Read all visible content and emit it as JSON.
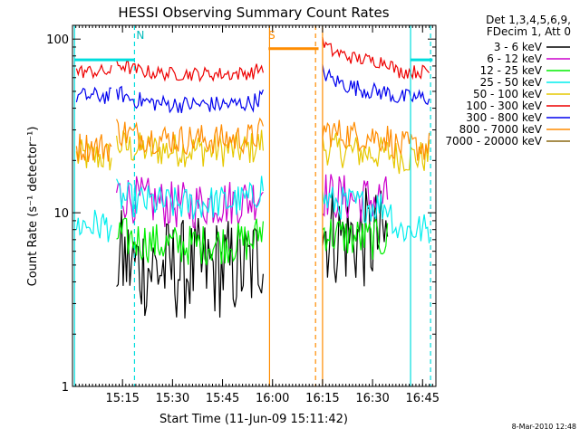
{
  "chart_data": {
    "type": "line",
    "title": "HESSI Observing Summary Count Rates",
    "xlabel": "Start Time (11-Jun-09 15:11:42)",
    "ylabel": "Count Rate (s⁻¹ detector⁻¹)",
    "yscale": "log",
    "ylim": [
      1,
      120
    ],
    "xlim_minutes": [
      15.0,
      16.8167
    ],
    "x_ticks": [
      {
        "value": 15.25,
        "label": "15:15"
      },
      {
        "value": 15.5,
        "label": "15:30"
      },
      {
        "value": 15.75,
        "label": "15:45"
      },
      {
        "value": 16.0,
        "label": "16:00"
      },
      {
        "value": 16.25,
        "label": "16:15"
      },
      {
        "value": 16.5,
        "label": "16:30"
      },
      {
        "value": 16.75,
        "label": "16:45"
      }
    ],
    "y_ticks": [
      {
        "value": 1,
        "label": "1"
      },
      {
        "value": 10,
        "label": "10"
      },
      {
        "value": 100,
        "label": "100"
      }
    ],
    "legend": {
      "placement": "top-right",
      "header": [
        "Det 1,3,4,5,6,9,",
        "FDecim 1, Att 0"
      ],
      "entries": [
        {
          "label": "3 - 6 keV",
          "color": "#000000"
        },
        {
          "label": "6 - 12 keV",
          "color": "#cc00cc"
        },
        {
          "label": "12 - 25 keV",
          "color": "#00ee00"
        },
        {
          "label": "25 - 50 keV",
          "color": "#00eeee"
        },
        {
          "label": "50 - 100 keV",
          "color": "#e6c800"
        },
        {
          "label": "100 - 300 keV",
          "color": "#ee0000"
        },
        {
          "label": "300 - 800 keV",
          "color": "#0000ee"
        },
        {
          "label": "800 - 7000 keV",
          "color": "#ff8c00"
        },
        {
          "label": "7000 - 20000 keV",
          "color": "#8b6914"
        }
      ]
    },
    "flag_labels": [
      {
        "text": "N",
        "x": 15.31,
        "color": "#00bbbb"
      },
      {
        "text": "S",
        "x": 15.97,
        "color": "#ff8c00"
      }
    ],
    "series": [
      {
        "name": "3 - 6 keV",
        "color": "#000000",
        "segments": [
          {
            "x": [
              15.22,
              15.26,
              15.3,
              15.4,
              15.5,
              15.6,
              15.7,
              15.8,
              15.9,
              15.96
            ],
            "y": [
              5.5,
              5.3,
              5.0,
              4.8,
              4.7,
              4.7,
              4.8,
              4.8,
              4.9,
              6.5
            ]
          },
          {
            "x": [
              16.25,
              16.3,
              16.4,
              16.5,
              16.58
            ],
            "y": [
              8.0,
              7.5,
              7.2,
              7.0,
              7.0
            ]
          }
        ]
      },
      {
        "name": "6 - 12 keV",
        "color": "#cc00cc",
        "segments": [
          {
            "x": [
              15.22,
              15.26,
              15.3,
              15.4,
              15.5,
              15.6,
              15.7,
              15.8,
              15.9,
              15.96
            ],
            "y": [
              13.0,
              12.5,
              12.0,
              11.5,
              11.0,
              11.0,
              11.5,
              11.5,
              12.0,
              14.0
            ]
          },
          {
            "x": [
              16.25,
              16.3,
              16.4,
              16.5,
              16.58
            ],
            "y": [
              13.0,
              12.5,
              12.0,
              12.0,
              12.0
            ]
          }
        ]
      },
      {
        "name": "12 - 25 keV",
        "color": "#00ee00",
        "segments": [
          {
            "x": [
              15.22,
              15.26,
              15.3,
              15.4,
              15.5,
              15.6,
              15.7,
              15.8,
              15.9,
              15.96
            ],
            "y": [
              7.5,
              7.2,
              7.0,
              6.7,
              6.5,
              6.5,
              6.6,
              6.7,
              6.8,
              8.5
            ]
          },
          {
            "x": [
              16.25,
              16.3,
              16.4,
              16.5,
              16.58
            ],
            "y": [
              8.0,
              7.5,
              7.2,
              7.0,
              7.0
            ]
          }
        ]
      },
      {
        "name": "25 - 50 keV",
        "color": "#00eeee",
        "segments": [
          {
            "x": [
              15.02,
              15.1,
              15.2
            ],
            "y": [
              8.5,
              8.5,
              8.5
            ]
          },
          {
            "x": [
              15.22,
              15.26,
              15.3,
              15.4,
              15.5,
              15.6,
              15.7,
              15.8,
              15.9,
              15.96
            ],
            "y": [
              12.5,
              12.0,
              11.8,
              11.5,
              11.2,
              11.2,
              11.5,
              11.5,
              12.0,
              15.0
            ]
          },
          {
            "x": [
              16.25,
              16.3,
              16.4,
              16.5,
              16.58,
              16.62,
              16.7,
              16.75,
              16.79
            ],
            "y": [
              12.0,
              11.5,
              11.2,
              11.0,
              11.0,
              8.0,
              8.0,
              8.0,
              8.0
            ]
          }
        ]
      },
      {
        "name": "50 - 100 keV",
        "color": "#e6c800",
        "segments": [
          {
            "x": [
              15.02,
              15.1,
              15.2
            ],
            "y": [
              21.0,
              21.0,
              21.0
            ]
          },
          {
            "x": [
              15.22,
              15.26,
              15.3,
              15.4,
              15.5,
              15.6,
              15.7,
              15.8,
              15.9,
              15.96
            ],
            "y": [
              25.0,
              24.0,
              23.5,
              23.0,
              23.0,
              23.0,
              23.0,
              23.0,
              23.5,
              26.0
            ]
          },
          {
            "x": [
              16.25,
              16.3,
              16.4,
              16.5,
              16.58,
              16.62,
              16.7,
              16.75,
              16.79
            ],
            "y": [
              24.0,
              23.0,
              22.5,
              22.0,
              22.0,
              21.0,
              21.0,
              21.0,
              21.0
            ]
          }
        ]
      },
      {
        "name": "100 - 300 keV",
        "color": "#ee0000",
        "segments": [
          {
            "x": [
              15.02,
              15.1,
              15.2
            ],
            "y": [
              65.0,
              65.0,
              65.0
            ]
          },
          {
            "x": [
              15.22,
              15.26,
              15.3,
              15.4,
              15.5,
              15.6,
              15.7,
              15.8,
              15.9,
              15.96
            ],
            "y": [
              72.0,
              70.0,
              67.0,
              64.0,
              63.0,
              63.0,
              63.0,
              63.0,
              64.0,
              70.0
            ]
          },
          {
            "x": [
              16.25,
              16.3,
              16.4,
              16.5,
              16.58,
              16.62,
              16.7,
              16.75,
              16.79
            ],
            "y": [
              95.0,
              85.0,
              78.0,
              75.0,
              74.0,
              65.0,
              65.0,
              65.0,
              65.0
            ]
          }
        ]
      },
      {
        "name": "300 - 800 keV",
        "color": "#0000ee",
        "segments": [
          {
            "x": [
              15.02,
              15.1,
              15.2
            ],
            "y": [
              47.0,
              47.0,
              47.0
            ]
          },
          {
            "x": [
              15.22,
              15.26,
              15.3,
              15.4,
              15.5,
              15.6,
              15.7,
              15.8,
              15.9,
              15.96
            ],
            "y": [
              50.0,
              47.0,
              45.0,
              43.0,
              42.0,
              42.0,
              42.0,
              42.0,
              43.0,
              48.0
            ]
          },
          {
            "x": [
              16.25,
              16.3,
              16.4,
              16.5,
              16.58,
              16.62,
              16.7,
              16.75,
              16.79
            ],
            "y": [
              65.0,
              58.0,
              53.0,
              50.0,
              49.0,
              46.0,
              46.0,
              46.0,
              46.0
            ]
          }
        ]
      },
      {
        "name": "800 - 7000 keV",
        "color": "#ff8c00",
        "segments": [
          {
            "x": [
              15.02,
              15.1,
              15.2
            ],
            "y": [
              24.0,
              24.0,
              24.0
            ]
          },
          {
            "x": [
              15.22,
              15.26,
              15.3,
              15.4,
              15.5,
              15.6,
              15.7,
              15.8,
              15.9,
              15.96
            ],
            "y": [
              30.0,
              29.0,
              28.0,
              27.0,
              26.5,
              26.5,
              26.5,
              26.5,
              27.0,
              30.0
            ]
          },
          {
            "x": [
              15.98,
              16.02,
              16.1,
              16.2,
              16.23
            ],
            "y": [
              88.0,
              88.0,
              88.0,
              88.0,
              88.0
            ]
          },
          {
            "x": [
              16.25,
              16.3,
              16.4,
              16.5,
              16.58,
              16.62,
              16.7,
              16.75,
              16.79
            ],
            "y": [
              30.0,
              29.0,
              28.0,
              27.5,
              27.0,
              24.0,
              24.0,
              24.0,
              24.0
            ]
          }
        ]
      },
      {
        "name": "7000 - 20000 keV",
        "color": "#8b6914",
        "segments": []
      }
    ]
  },
  "footer": {
    "date_stamp": "8-Mar-2010 12:48"
  }
}
